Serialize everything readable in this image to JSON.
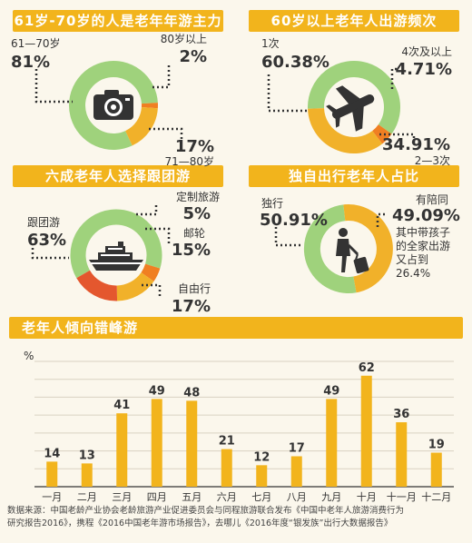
{
  "colors": {
    "banner": "#f2b41c",
    "green": "#9fd27c",
    "gold": "#f1b12a",
    "orange": "#f07f22",
    "red": "#e4572e",
    "bar": "#f2b41c",
    "dark": "#333333"
  },
  "banners": [
    "61岁-70岁的人是老年年游主力",
    "60岁以上老年人出游频次",
    "六成老年人选择跟团游",
    "独自出行老年人占比",
    "老年人倾向错峰游"
  ],
  "icons": [
    "camera-icon",
    "airplane-icon",
    "cruise-ship-icon",
    "traveler-with-luggage-icon"
  ],
  "chart_data": [
    {
      "type": "pie",
      "title": "61岁-70岁的人是老年年游主力",
      "slices": [
        {
          "label": "61—70岁",
          "value": "81%",
          "v": 81
        },
        {
          "label": "80岁以上",
          "value": "2%",
          "v": 2
        },
        {
          "label": "71—80岁",
          "value": "17%",
          "v": 17
        }
      ]
    },
    {
      "type": "pie",
      "title": "60岁以上老年人出游频次",
      "slices": [
        {
          "label": "1次",
          "value": "60.38%",
          "v": 60.38
        },
        {
          "label": "4次及以上",
          "value": "4.71%",
          "v": 4.71
        },
        {
          "label": "2—3次",
          "value": "34.91%",
          "v": 34.91
        }
      ]
    },
    {
      "type": "pie",
      "title": "六成老年人选择跟团游",
      "slices": [
        {
          "label": "跟团游",
          "value": "63%",
          "v": 63
        },
        {
          "label": "定制旅游",
          "value": "5%",
          "v": 5
        },
        {
          "label": "邮轮",
          "value": "15%",
          "v": 15
        },
        {
          "label": "自由行",
          "value": "17%",
          "v": 17
        }
      ]
    },
    {
      "type": "pie",
      "title": "独自出行老年人占比",
      "slices": [
        {
          "label": "独行",
          "value": "50.91%",
          "v": 50.91
        },
        {
          "label": "有陪同",
          "value": "49.09%",
          "v": 49.09
        }
      ],
      "note_lines": [
        "其中带孩子",
        "的全家出游",
        "又占到",
        "26.4%"
      ]
    },
    {
      "type": "bar",
      "title": "老年人倾向错峰游",
      "ylabel": "%",
      "ylim": [
        0,
        70
      ],
      "yticks": [
        0,
        10,
        20,
        30,
        40,
        50,
        60,
        70
      ],
      "categories": [
        "一月",
        "二月",
        "三月",
        "四月",
        "五月",
        "六月",
        "七月",
        "八月",
        "九月",
        "十月",
        "十一月",
        "十二月"
      ],
      "values": [
        14,
        13,
        41,
        49,
        48,
        21,
        12,
        17,
        49,
        62,
        36,
        19
      ]
    }
  ],
  "source": {
    "line1": "数据来源：中国老龄产业协会老龄旅游产业促进委员会与同程旅游联合发布《中国中老年人旅游消费行为",
    "line2": "研究报告2016》，携程《2016中国老年游市场报告》，去哪儿《2016年度“银发族”出行大数据报告》"
  }
}
